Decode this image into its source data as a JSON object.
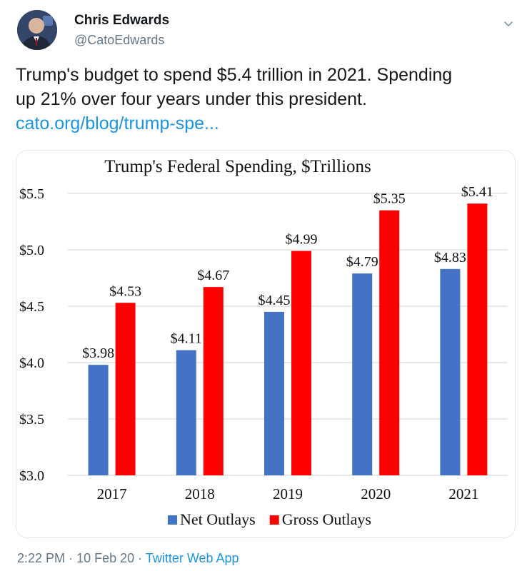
{
  "author": {
    "name": "Chris Edwards",
    "handle": "@CatoEdwards"
  },
  "tweet": {
    "line1": "Trump's budget to spend $5.4 trillion in 2021. Spending",
    "line2": "up 21% over four years under this president.",
    "link": "cato.org/blog/trump-spe..."
  },
  "meta": {
    "time": "2:22 PM",
    "sep1": "·",
    "date": "10 Feb 20",
    "sep2": "·",
    "source": "Twitter Web App"
  },
  "colors": {
    "link": "#1b95e0",
    "muted": "#657786",
    "net": "#4472c4",
    "gross": "#ff0000"
  },
  "icons": {
    "caret": "chevron-down-icon",
    "avatar": "avatar"
  },
  "chart_data": {
    "type": "bar",
    "title": "Trump's Federal Spending, $Trillions",
    "categories": [
      "2017",
      "2018",
      "2019",
      "2020",
      "2021"
    ],
    "series": [
      {
        "name": "Net Outlays",
        "values": [
          3.98,
          4.11,
          4.45,
          4.79,
          4.83
        ],
        "labels": [
          "$3.98",
          "$4.11",
          "$4.45",
          "$4.79",
          "$4.83"
        ],
        "color": "#4472c4"
      },
      {
        "name": "Gross Outlays",
        "values": [
          4.53,
          4.67,
          4.99,
          5.35,
          5.41
        ],
        "labels": [
          "$4.53",
          "$4.67",
          "$4.99",
          "$5.35",
          "$5.41"
        ],
        "color": "#ff0000"
      }
    ],
    "ylim": [
      3.0,
      5.5
    ],
    "yticks": [
      3.0,
      3.5,
      4.0,
      4.5,
      5.0,
      5.5
    ],
    "ytick_labels": [
      "$3.0",
      "$3.5",
      "$4.0",
      "$4.5",
      "$5.0",
      "$5.5"
    ],
    "grid": true,
    "legend": "bottom"
  }
}
